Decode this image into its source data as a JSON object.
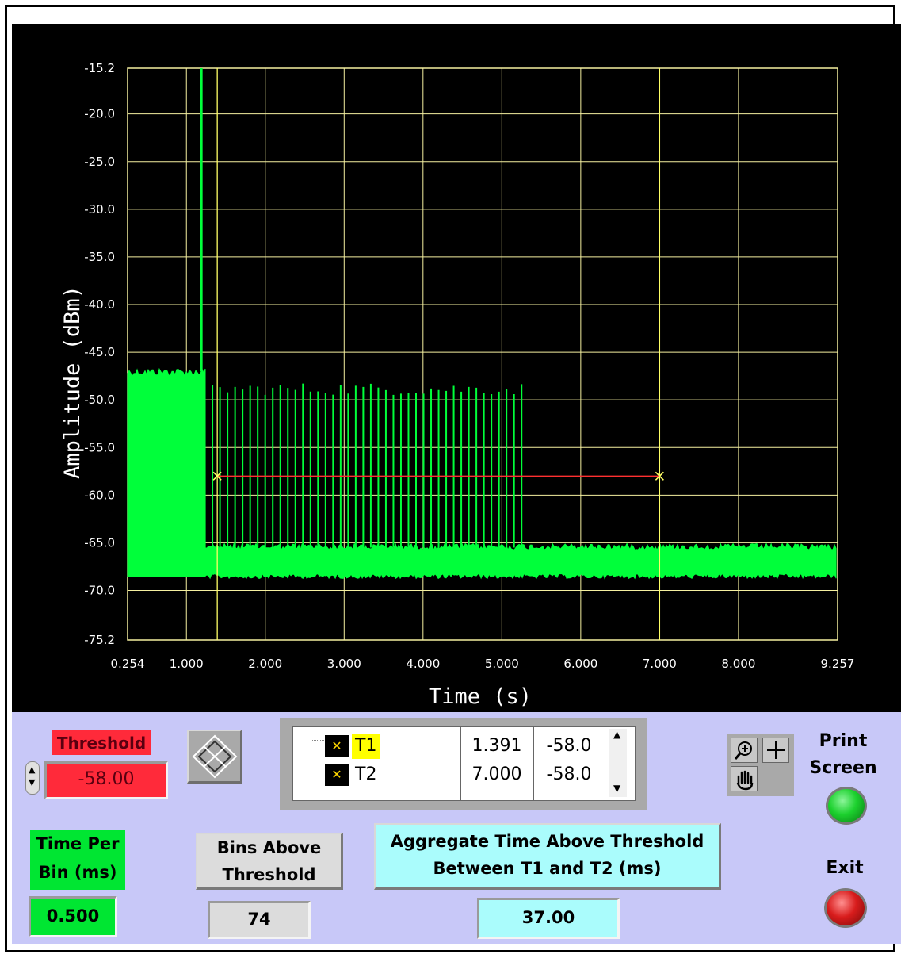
{
  "graph": {
    "ylabel": "Amplitude (dBm)",
    "xlabel": "Time (s)",
    "colors": {
      "background": "#000000",
      "grid": "#f5f0a0",
      "trace": "#00ff3a",
      "cursor_line": "#ffff66",
      "threshold_line": "#ff3030"
    }
  },
  "chart_data": {
    "type": "line",
    "xlabel": "Time (s)",
    "ylabel": "Amplitude (dBm)",
    "xlim": [
      0.254,
      9.257
    ],
    "ylim": [
      -75.2,
      -15.2
    ],
    "x_ticks": [
      0.254,
      1.0,
      2.0,
      3.0,
      4.0,
      5.0,
      6.0,
      7.0,
      8.0,
      9.257
    ],
    "x_tick_labels": [
      "0.254",
      "1.000",
      "2.000",
      "3.000",
      "4.000",
      "5.000",
      "6.000",
      "7.000",
      "8.000",
      "9.257"
    ],
    "y_ticks": [
      -15.2,
      -20.0,
      -25.0,
      -30.0,
      -35.0,
      -40.0,
      -45.0,
      -50.0,
      -55.0,
      -60.0,
      -65.0,
      -70.0,
      -75.2
    ],
    "y_tick_labels": [
      "-15.2",
      "-20.0",
      "-25.0",
      "-30.0",
      "-35.0",
      "-40.0",
      "-45.0",
      "-50.0",
      "-55.0",
      "-60.0",
      "-65.0",
      "-70.0",
      "-75.2"
    ],
    "grid": true,
    "noise_floor": [
      -68.5,
      -65.5
    ],
    "burst_segment": {
      "x": [
        0.254,
        1.24
      ],
      "y": [
        -68.5,
        -47.0
      ]
    },
    "spike": {
      "x": 1.19,
      "y": -15.2
    },
    "pulses": {
      "x_start": 1.33,
      "x_end": 5.25,
      "count": 42,
      "peak": [
        -49.5,
        -48.2
      ]
    },
    "cursors": [
      {
        "name": "T1",
        "x": 1.391,
        "y": -58.0
      },
      {
        "name": "T2",
        "x": 7.0,
        "y": -58.0
      }
    ],
    "threshold": -58.0
  },
  "controls": {
    "threshold": {
      "label": "Threshold",
      "value": "-58.00",
      "color": "#ff2a3a"
    },
    "time_per_bin": {
      "label": "Time Per\nBin (ms)",
      "value": "0.500",
      "color": "#00e632"
    },
    "bins_above": {
      "label": "Bins Above\nThreshold",
      "value": "74",
      "color": "#dcdcdc"
    },
    "aggregate": {
      "label": "Aggregate Time Above Threshold\nBetween T1 and T2 (ms)",
      "value": "37.00",
      "color": "#aafcfc"
    },
    "print_screen": {
      "label": "Print\nScreen",
      "led_color": "#1cd12e"
    },
    "exit": {
      "label": "Exit",
      "led_color": "#d81c1c"
    }
  },
  "cursor_legend": [
    {
      "name": "T1",
      "x": "1.391",
      "y": "-58.0"
    },
    {
      "name": "T2",
      "x": "7.000",
      "y": "-58.0"
    }
  ],
  "icons": [
    "cursor-move-icon",
    "zoom-icon",
    "crosshair-icon",
    "pan-hand-icon",
    "spinner-icon"
  ]
}
